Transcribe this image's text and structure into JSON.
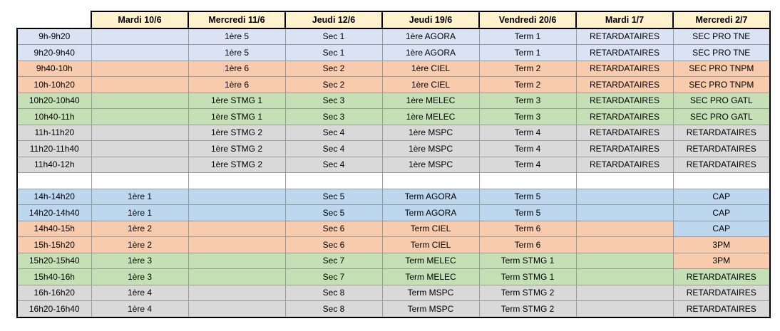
{
  "colors": {
    "header": "#fff2cc",
    "blue": "#dae3f3",
    "blue_afternoon": "#bdd7ee",
    "orange": "#f8cbad",
    "green": "#c5e0b4",
    "grey": "#d9d9d9",
    "white": "#ffffff"
  },
  "headers": [
    "",
    "Mardi 10/6",
    "Mercredi 11/6",
    "Jeudi 12/6",
    "Jeudi 19/6",
    "Vendredi 20/6",
    "Mardi 1/7",
    "Mercredi 2/7"
  ],
  "rows": [
    {
      "color": "blue",
      "cells": [
        "9h-9h20",
        "",
        "1ère 5",
        "Sec 1",
        "1ère AGORA",
        "Term 1",
        "RETARDATAIRES",
        "SEC PRO TNE"
      ]
    },
    {
      "color": "blue",
      "cells": [
        "9h20-9h40",
        "",
        "1ère 5",
        "Sec 1",
        "1ère AGORA",
        "Term 1",
        "RETARDATAIRES",
        "SEC PRO TNE"
      ]
    },
    {
      "color": "orange",
      "cells": [
        "9h40-10h",
        "",
        "1ère 6",
        "Sec 2",
        "1ère CIEL",
        "Term 2",
        "RETARDATAIRES",
        "SEC PRO TNPM"
      ]
    },
    {
      "color": "orange",
      "cells": [
        "10h-10h20",
        "",
        "1ère 6",
        "Sec 2",
        "1ère CIEL",
        "Term 2",
        "RETARDATAIRES",
        "SEC PRO TNPM"
      ]
    },
    {
      "color": "green",
      "cells": [
        "10h20-10h40",
        "",
        "1ère STMG 1",
        "Sec 3",
        "1ère MELEC",
        "Term 3",
        "RETARDATAIRES",
        "SEC PRO GATL"
      ]
    },
    {
      "color": "green",
      "cells": [
        "10h40-11h",
        "",
        "1ère STMG 1",
        "Sec 3",
        "1ère MELEC",
        "Term 3",
        "RETARDATAIRES",
        "SEC PRO GATL"
      ]
    },
    {
      "color": "grey",
      "cells": [
        "11h-11h20",
        "",
        "1ère STMG 2",
        "Sec 4",
        "1ère MSPC",
        "Term 4",
        "RETARDATAIRES",
        "RETARDATAIRES"
      ]
    },
    {
      "color": "grey",
      "cells": [
        "11h20-11h40",
        "",
        "1ère STMG 2",
        "Sec 4",
        "1ère MSPC",
        "Term 4",
        "RETARDATAIRES",
        "RETARDATAIRES"
      ]
    },
    {
      "color": "grey",
      "cells": [
        "11h40-12h",
        "",
        "1ère STMG 2",
        "Sec 4",
        "1ère MSPC",
        "Term 4",
        "RETARDATAIRES",
        "RETARDATAIRES"
      ]
    },
    {
      "color": "white",
      "gap": true,
      "cells": [
        "",
        "",
        "",
        "",
        "",
        "",
        "",
        ""
      ]
    },
    {
      "color": "blue_afternoon",
      "cells": [
        "14h-14h20",
        "1ère 1",
        "",
        "Sec 5",
        "Term AGORA",
        "Term 5",
        "",
        "CAP"
      ]
    },
    {
      "color": "blue_afternoon",
      "cells": [
        "14h20-14h40",
        "1ère 1",
        "",
        "Sec 5",
        "Term AGORA",
        "Term 5",
        "",
        "CAP"
      ]
    },
    {
      "color": "orange",
      "overrides": {
        "7": "blue_afternoon"
      },
      "cells": [
        "14h40-15h",
        "1ère 2",
        "",
        "Sec 6",
        "Term CIEL",
        "Term 6",
        "",
        "CAP"
      ]
    },
    {
      "color": "orange",
      "cells": [
        "15h-15h20",
        "1ère 2",
        "",
        "Sec 6",
        "Term CIEL",
        "Term 6",
        "",
        "3PM"
      ]
    },
    {
      "color": "green",
      "overrides": {
        "7": "orange"
      },
      "cells": [
        "15h20-15h40",
        "1ère 3",
        "",
        "Sec 7",
        "Term MELEC",
        "Term STMG 1",
        "",
        "3PM"
      ]
    },
    {
      "color": "green",
      "cells": [
        "15h40-16h",
        "1ère 3",
        "",
        "Sec 7",
        "Term MELEC",
        "Term STMG 1",
        "",
        "RETARDATAIRES"
      ]
    },
    {
      "color": "grey",
      "cells": [
        "16h-16h20",
        "1ère 4",
        "",
        "Sec 8",
        "Term MSPC",
        "Term STMG 2",
        "",
        "RETARDATAIRES"
      ]
    },
    {
      "color": "grey",
      "cells": [
        "16h20-16h40",
        "1ère 4",
        "",
        "Sec 8",
        "Term MSPC",
        "Term STMG 2",
        "",
        "RETARDATAIRES"
      ]
    }
  ]
}
